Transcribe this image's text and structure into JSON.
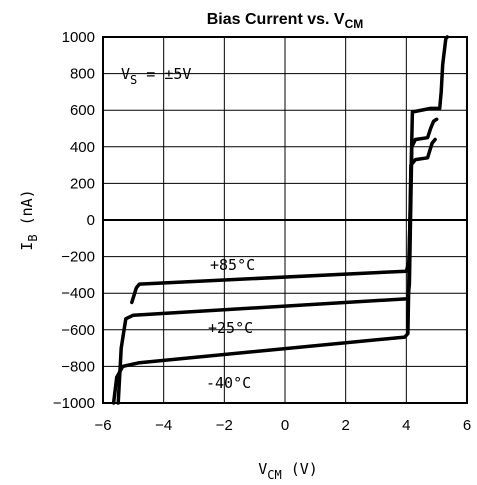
{
  "chart_data": {
    "type": "line",
    "title": {
      "main": "Bias Current vs. V",
      "sub": "CM"
    },
    "xlabel": {
      "main": "V",
      "sub": "CM",
      "rest": " (V)"
    },
    "ylabel": {
      "main": "I",
      "sub": "B",
      "rest": " (nA)"
    },
    "xlim": [
      -6,
      6
    ],
    "ylim": [
      -1000,
      1000
    ],
    "x_ticks": [
      -6,
      -4,
      -2,
      0,
      2,
      4,
      6
    ],
    "y_ticks": [
      -1000,
      -800,
      -600,
      -400,
      -200,
      0,
      200,
      400,
      600,
      800,
      1000
    ],
    "grid": true,
    "annotations": {
      "supply": {
        "main": "V",
        "sub": "S",
        "rest": " = ±5V"
      },
      "t85": "+85°C",
      "t25": "+25°C",
      "tm40": "-40°C"
    },
    "series": [
      {
        "name": "+85°C",
        "x": [
          -5.05,
          -4.9,
          -4.8,
          4.0,
          4.08,
          4.12,
          4.2,
          4.8,
          5.1,
          5.15,
          5.2,
          5.3,
          5.35
        ],
        "y": [
          -450,
          -370,
          -350,
          -280,
          -230,
          0,
          590,
          610,
          610,
          700,
          850,
          990,
          1000
        ]
      },
      {
        "name": "+25°C",
        "x": [
          -5.5,
          -5.4,
          -5.25,
          -5.0,
          4.05,
          4.1,
          4.18,
          4.3,
          4.7,
          4.8,
          4.9,
          5.0
        ],
        "y": [
          -1000,
          -700,
          -540,
          -520,
          -430,
          -350,
          400,
          440,
          450,
          500,
          540,
          550
        ]
      },
      {
        "name": "-40°C",
        "x": [
          -5.65,
          -5.55,
          -5.35,
          -4.8,
          3.95,
          4.05,
          4.15,
          4.3,
          4.7,
          4.85,
          4.95
        ],
        "y": [
          -1000,
          -860,
          -800,
          -780,
          -640,
          -620,
          300,
          330,
          340,
          420,
          440
        ]
      }
    ]
  }
}
